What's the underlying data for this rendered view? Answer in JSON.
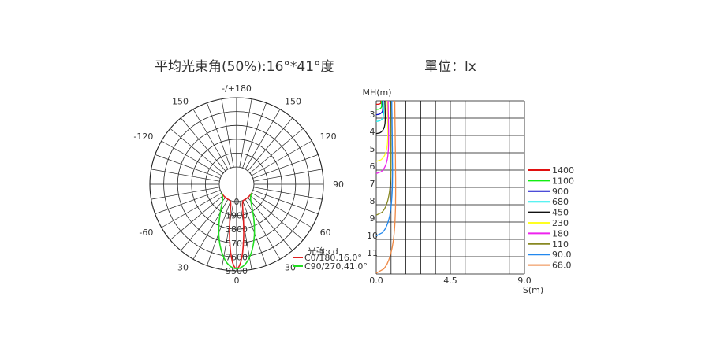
{
  "polar_chart": {
    "title": "平均光束角(50%):16°*41°度",
    "angle_labels": [
      {
        "angle": 180,
        "text": "-/+180"
      },
      {
        "angle": 150,
        "text": "150"
      },
      {
        "angle": -150,
        "text": "-150"
      },
      {
        "angle": 120,
        "text": "120"
      },
      {
        "angle": -120,
        "text": "-120"
      },
      {
        "angle": 90,
        "text": "90"
      },
      {
        "angle": 60,
        "text": "60"
      },
      {
        "angle": -60,
        "text": "-60"
      },
      {
        "angle": 30,
        "text": "30"
      },
      {
        "angle": -30,
        "text": "-30"
      },
      {
        "angle": 0,
        "text": "0"
      }
    ],
    "radial_labels": [
      "0",
      "1900",
      "3800",
      "5700",
      "7600",
      "9500"
    ],
    "legend_title": "光強:cd",
    "series": [
      {
        "name": "C0/180,16.0°",
        "color": "#e02020",
        "peak_cd": 9200,
        "beam_angle": 16
      },
      {
        "name": "C90/270,41.0°",
        "color": "#22dd22",
        "peak_cd": 9200,
        "beam_angle": 41
      }
    ]
  },
  "iso_chart": {
    "title": "單位：lx",
    "y_axis_label": "MH(m)",
    "x_axis_label": "S(m)",
    "y_tick_labels": [
      "3",
      "4",
      "5",
      "6",
      "7",
      "8",
      "9",
      "10",
      "11"
    ],
    "x_tick_labels": [
      "0.0",
      "4.5",
      "9.0"
    ],
    "legend": [
      {
        "value": "1400",
        "color": "#e01010"
      },
      {
        "value": "1100",
        "color": "#11ee11"
      },
      {
        "value": "900",
        "color": "#1010cc"
      },
      {
        "value": "680",
        "color": "#22eeee"
      },
      {
        "value": "450",
        "color": "#111111"
      },
      {
        "value": "230",
        "color": "#ffff22"
      },
      {
        "value": "180",
        "color": "#ee22ee"
      },
      {
        "value": "110",
        "color": "#888822"
      },
      {
        "value": "90.0",
        "color": "#2288ee"
      },
      {
        "value": "68.0",
        "color": "#ee8844"
      }
    ]
  }
}
